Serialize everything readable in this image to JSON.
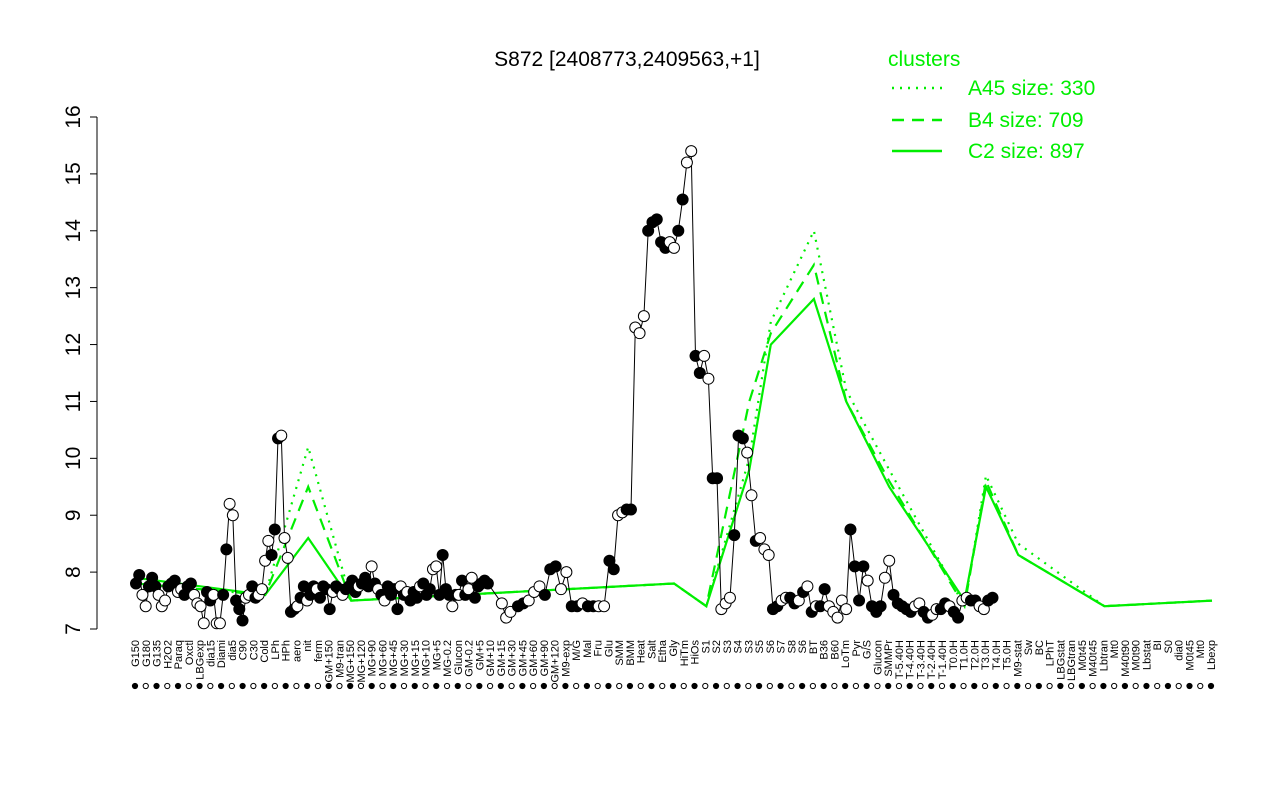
{
  "chart_data": {
    "type": "line",
    "title": "S872 [2408773,2409563,+1]",
    "ylim": [
      7,
      16
    ],
    "yticks": [
      7,
      8,
      9,
      10,
      11,
      12,
      13,
      14,
      15,
      16
    ],
    "x_tick_labels": [
      "G150",
      "G180",
      "G135",
      "H2O2",
      "Paraq",
      "Oxctl",
      "LBGexp",
      "dia15",
      "Diami",
      "dia5",
      "C90",
      "C30",
      "Cold",
      "LPh",
      "HPh",
      "aero",
      "nit",
      "ferm",
      "GM+150",
      "M9-tran",
      "MG+150",
      "MG+120",
      "MG+90",
      "MG+60",
      "MG+45",
      "MG+30",
      "MG+15",
      "MG+10",
      "MG+5",
      "MG-0.2",
      "Glucon",
      "GM-0.2",
      "GM+5",
      "GM+10",
      "GM+15",
      "GM+30",
      "GM+45",
      "GM+60",
      "GM+90",
      "GM+120",
      "M9-exp",
      "M/G",
      "Mal",
      "Fru",
      "Glu",
      "SMM",
      "BMM",
      "Heat",
      "Salt",
      "Etha",
      "Gly",
      "HiTm",
      "HiOs",
      "S1",
      "S2",
      "S3",
      "S4",
      "S3",
      "S5",
      "S6",
      "S7",
      "S8",
      "S6",
      "BT",
      "B36",
      "B60",
      "LoTm",
      "Pyr",
      "G/S",
      "Glucon",
      "SMMPr",
      "T-5.40H",
      "T-4.40H",
      "T-3.40H",
      "T-2.40H",
      "T-1.40H",
      "T0.0H",
      "T1.0H",
      "T2.0H",
      "T3.0H",
      "T4.0H",
      "T5.0H",
      "M9-stat",
      "Sw",
      "BC",
      "LPhT",
      "LBGstat",
      "LBGtran",
      "M0t45",
      "M40t45",
      "Lbtran",
      "Mt0",
      "M40t90",
      "M0t90",
      "Lbstat",
      "BI",
      "S0",
      "dia0",
      "M0t45",
      "Mt0",
      "Lbexp"
    ],
    "legend": {
      "title": "clusters",
      "placement": "top-right",
      "entries": [
        "A45 size: 330",
        "B4 size: 709",
        "C2 size: 897"
      ]
    },
    "series": [
      {
        "name": "A45 size: 330",
        "style": "dotted",
        "color": "#00ee00",
        "keypoints": [
          [
            0,
            7.8
          ],
          [
            12,
            7.6
          ],
          [
            16,
            10.2
          ],
          [
            20,
            7.5
          ],
          [
            50,
            7.8
          ],
          [
            53,
            7.4
          ],
          [
            57,
            10.0
          ],
          [
            59,
            12.4
          ],
          [
            63,
            14.0
          ],
          [
            66,
            11.2
          ],
          [
            70,
            9.8
          ],
          [
            77,
            7.4
          ],
          [
            79,
            9.7
          ],
          [
            82,
            8.5
          ],
          [
            90,
            7.4
          ],
          [
            100,
            7.5
          ]
        ]
      },
      {
        "name": "B4 size: 709",
        "style": "dashed",
        "color": "#00ee00",
        "keypoints": [
          [
            0,
            7.8
          ],
          [
            12,
            7.6
          ],
          [
            16,
            9.5
          ],
          [
            20,
            7.5
          ],
          [
            50,
            7.8
          ],
          [
            53,
            7.4
          ],
          [
            57,
            11.0
          ],
          [
            59,
            12.2
          ],
          [
            63,
            13.4
          ],
          [
            66,
            11.0
          ],
          [
            70,
            9.6
          ],
          [
            77,
            7.4
          ],
          [
            79,
            9.6
          ],
          [
            82,
            8.3
          ],
          [
            90,
            7.4
          ],
          [
            100,
            7.5
          ]
        ]
      },
      {
        "name": "C2 size: 897",
        "style": "solid",
        "color": "#00ee00",
        "keypoints": [
          [
            0,
            7.9
          ],
          [
            12,
            7.6
          ],
          [
            16,
            8.6
          ],
          [
            20,
            7.5
          ],
          [
            50,
            7.8
          ],
          [
            53,
            7.4
          ],
          [
            57,
            9.8
          ],
          [
            59,
            12.0
          ],
          [
            63,
            12.8
          ],
          [
            66,
            11.0
          ],
          [
            70,
            9.5
          ],
          [
            77,
            7.5
          ],
          [
            79,
            9.5
          ],
          [
            82,
            8.3
          ],
          [
            90,
            7.4
          ],
          [
            100,
            7.5
          ]
        ]
      }
    ],
    "points": [
      [
        0,
        7.8,
        1
      ],
      [
        0.3,
        7.95,
        1
      ],
      [
        0.6,
        7.6,
        0
      ],
      [
        0.9,
        7.4,
        0
      ],
      [
        1.2,
        7.75,
        1
      ],
      [
        1.5,
        7.9,
        1
      ],
      [
        1.8,
        7.75,
        1
      ],
      [
        2.1,
        7.6,
        0
      ],
      [
        2.4,
        7.4,
        0
      ],
      [
        2.7,
        7.5,
        0
      ],
      [
        3.0,
        7.75,
        1
      ],
      [
        3.3,
        7.8,
        1
      ],
      [
        3.6,
        7.85,
        1
      ],
      [
        3.9,
        7.65,
        0
      ],
      [
        4.2,
        7.7,
        0
      ],
      [
        4.5,
        7.6,
        1
      ],
      [
        4.8,
        7.75,
        1
      ],
      [
        5.1,
        7.8,
        1
      ],
      [
        5.4,
        7.6,
        0
      ],
      [
        5.7,
        7.45,
        0
      ],
      [
        6.0,
        7.4,
        0
      ],
      [
        6.3,
        7.1,
        0
      ],
      [
        6.6,
        7.65,
        1
      ],
      [
        6.9,
        7.5,
        1
      ],
      [
        7.2,
        7.6,
        0
      ],
      [
        7.5,
        7.1,
        0
      ],
      [
        7.8,
        7.1,
        0
      ],
      [
        8.1,
        7.6,
        1
      ],
      [
        8.4,
        8.4,
        1
      ],
      [
        8.7,
        9.2,
        0
      ],
      [
        9.0,
        9.0,
        0
      ],
      [
        9.3,
        7.5,
        1
      ],
      [
        9.6,
        7.35,
        1
      ],
      [
        9.9,
        7.15,
        1
      ],
      [
        10.2,
        7.55,
        0
      ],
      [
        10.5,
        7.6,
        0
      ],
      [
        10.8,
        7.75,
        1
      ],
      [
        11.1,
        7.55,
        1
      ],
      [
        11.4,
        7.6,
        0
      ],
      [
        11.7,
        7.7,
        0
      ],
      [
        12.0,
        8.2,
        0
      ],
      [
        12.3,
        8.55,
        0
      ],
      [
        12.6,
        8.3,
        1
      ],
      [
        12.9,
        8.75,
        1
      ],
      [
        13.2,
        10.35,
        1
      ],
      [
        13.5,
        10.4,
        0
      ],
      [
        13.8,
        8.6,
        0
      ],
      [
        14.1,
        8.25,
        0
      ],
      [
        14.4,
        7.3,
        1
      ],
      [
        14.7,
        7.35,
        1
      ],
      [
        15.0,
        7.4,
        0
      ],
      [
        15.3,
        7.55,
        1
      ],
      [
        15.6,
        7.75,
        1
      ],
      [
        15.9,
        7.5,
        0
      ],
      [
        16.2,
        7.6,
        1
      ],
      [
        16.5,
        7.75,
        1
      ],
      [
        16.8,
        7.7,
        0
      ],
      [
        17.1,
        7.55,
        1
      ],
      [
        17.4,
        7.75,
        1
      ],
      [
        17.7,
        7.7,
        1
      ],
      [
        18.0,
        7.35,
        1
      ],
      [
        18.3,
        7.65,
        0
      ],
      [
        18.6,
        7.75,
        1
      ],
      [
        18.9,
        7.7,
        1
      ],
      [
        19.2,
        7.6,
        0
      ],
      [
        19.5,
        7.7,
        1
      ],
      [
        19.8,
        7.75,
        1
      ],
      [
        20.1,
        7.85,
        1
      ],
      [
        20.4,
        7.65,
        1
      ],
      [
        20.7,
        7.75,
        0
      ],
      [
        21.0,
        7.8,
        1
      ],
      [
        21.3,
        7.9,
        1
      ],
      [
        21.6,
        7.75,
        1
      ],
      [
        21.9,
        8.1,
        0
      ],
      [
        22.2,
        7.8,
        1
      ],
      [
        22.5,
        7.7,
        0
      ],
      [
        22.8,
        7.6,
        1
      ],
      [
        23.1,
        7.5,
        0
      ],
      [
        23.4,
        7.75,
        1
      ],
      [
        23.7,
        7.6,
        1
      ],
      [
        24.0,
        7.7,
        1
      ],
      [
        24.3,
        7.35,
        1
      ],
      [
        24.6,
        7.75,
        0
      ],
      [
        24.9,
        7.6,
        1
      ],
      [
        25.2,
        7.65,
        0
      ],
      [
        25.5,
        7.5,
        1
      ],
      [
        25.8,
        7.65,
        1
      ],
      [
        26.1,
        7.55,
        1
      ],
      [
        26.4,
        7.75,
        0
      ],
      [
        26.7,
        7.8,
        1
      ],
      [
        27.0,
        7.6,
        1
      ],
      [
        27.3,
        7.7,
        1
      ],
      [
        27.6,
        8.05,
        0
      ],
      [
        27.9,
        8.1,
        0
      ],
      [
        28.2,
        7.6,
        1
      ],
      [
        28.5,
        8.3,
        1
      ],
      [
        28.8,
        7.7,
        1
      ],
      [
        29.1,
        7.6,
        1
      ],
      [
        29.4,
        7.4,
        0
      ],
      [
        29.7,
        7.6,
        1
      ],
      [
        30.0,
        7.6,
        0
      ],
      [
        30.3,
        7.85,
        1
      ],
      [
        30.6,
        7.6,
        1
      ],
      [
        30.9,
        7.7,
        0
      ],
      [
        31.2,
        7.9,
        0
      ],
      [
        31.5,
        7.55,
        1
      ],
      [
        31.8,
        7.75,
        1
      ],
      [
        32.1,
        7.8,
        1
      ],
      [
        32.4,
        7.85,
        1
      ],
      [
        32.7,
        7.8,
        1
      ],
      [
        34.0,
        7.45,
        0
      ],
      [
        34.4,
        7.2,
        0
      ],
      [
        34.8,
        7.3,
        0
      ],
      [
        35.5,
        7.4,
        1
      ],
      [
        36.0,
        7.45,
        1
      ],
      [
        36.5,
        7.5,
        0
      ],
      [
        37.0,
        7.65,
        0
      ],
      [
        37.5,
        7.75,
        0
      ],
      [
        38.0,
        7.6,
        1
      ],
      [
        38.5,
        8.05,
        1
      ],
      [
        39.0,
        8.1,
        1
      ],
      [
        39.5,
        7.7,
        0
      ],
      [
        40.0,
        8.0,
        0
      ],
      [
        40.5,
        7.4,
        1
      ],
      [
        41.0,
        7.4,
        1
      ],
      [
        41.5,
        7.45,
        0
      ],
      [
        42.0,
        7.4,
        1
      ],
      [
        42.5,
        7.4,
        1
      ],
      [
        43.0,
        7.4,
        0
      ],
      [
        43.5,
        7.4,
        0
      ],
      [
        44.0,
        8.2,
        1
      ],
      [
        44.4,
        8.05,
        1
      ],
      [
        44.8,
        9.0,
        0
      ],
      [
        45.2,
        9.05,
        0
      ],
      [
        45.6,
        9.1,
        1
      ],
      [
        46.0,
        9.1,
        1
      ],
      [
        46.4,
        12.3,
        0
      ],
      [
        46.8,
        12.2,
        0
      ],
      [
        47.2,
        12.5,
        0
      ],
      [
        47.6,
        14.0,
        1
      ],
      [
        48.0,
        14.15,
        1
      ],
      [
        48.4,
        14.2,
        1
      ],
      [
        48.8,
        13.8,
        1
      ],
      [
        49.2,
        13.7,
        1
      ],
      [
        49.6,
        13.8,
        0
      ],
      [
        50.0,
        13.7,
        0
      ],
      [
        50.4,
        14.0,
        1
      ],
      [
        50.8,
        14.55,
        1
      ],
      [
        51.2,
        15.2,
        0
      ],
      [
        51.6,
        15.4,
        0
      ],
      [
        52.0,
        11.8,
        1
      ],
      [
        52.4,
        11.5,
        1
      ],
      [
        52.8,
        11.8,
        0
      ],
      [
        53.2,
        11.4,
        0
      ],
      [
        53.6,
        9.65,
        1
      ],
      [
        54.0,
        9.65,
        1
      ],
      [
        54.4,
        7.35,
        0
      ],
      [
        54.8,
        7.45,
        0
      ],
      [
        55.2,
        7.55,
        0
      ],
      [
        55.6,
        8.65,
        1
      ],
      [
        56.0,
        10.4,
        1
      ],
      [
        56.4,
        10.35,
        1
      ],
      [
        56.8,
        10.1,
        0
      ],
      [
        57.2,
        9.35,
        0
      ],
      [
        57.6,
        8.55,
        1
      ],
      [
        58.0,
        8.6,
        0
      ],
      [
        58.4,
        8.4,
        0
      ],
      [
        58.8,
        8.3,
        0
      ],
      [
        59.2,
        7.35,
        1
      ],
      [
        59.6,
        7.4,
        1
      ],
      [
        60.0,
        7.5,
        0
      ],
      [
        60.4,
        7.55,
        0
      ],
      [
        60.8,
        7.55,
        1
      ],
      [
        61.2,
        7.45,
        1
      ],
      [
        61.6,
        7.5,
        0
      ],
      [
        62.0,
        7.65,
        1
      ],
      [
        62.4,
        7.75,
        0
      ],
      [
        62.8,
        7.3,
        1
      ],
      [
        63.2,
        7.4,
        0
      ],
      [
        63.6,
        7.4,
        1
      ],
      [
        64.0,
        7.7,
        1
      ],
      [
        64.4,
        7.4,
        0
      ],
      [
        64.8,
        7.3,
        0
      ],
      [
        65.2,
        7.2,
        0
      ],
      [
        65.6,
        7.5,
        0
      ],
      [
        66.0,
        7.35,
        0
      ],
      [
        66.4,
        8.75,
        1
      ],
      [
        66.8,
        8.1,
        1
      ],
      [
        67.2,
        7.5,
        1
      ],
      [
        67.6,
        8.1,
        1
      ],
      [
        68.0,
        7.85,
        0
      ],
      [
        68.4,
        7.4,
        1
      ],
      [
        68.8,
        7.3,
        1
      ],
      [
        69.2,
        7.4,
        1
      ],
      [
        69.6,
        7.9,
        0
      ],
      [
        70.0,
        8.2,
        0
      ],
      [
        70.4,
        7.6,
        1
      ],
      [
        70.8,
        7.45,
        1
      ],
      [
        71.2,
        7.4,
        1
      ],
      [
        71.6,
        7.35,
        1
      ],
      [
        72.0,
        7.3,
        1
      ],
      [
        72.4,
        7.4,
        0
      ],
      [
        72.8,
        7.45,
        0
      ],
      [
        73.2,
        7.3,
        1
      ],
      [
        73.6,
        7.2,
        1
      ],
      [
        74.0,
        7.25,
        0
      ],
      [
        74.4,
        7.35,
        0
      ],
      [
        74.8,
        7.35,
        1
      ],
      [
        75.2,
        7.45,
        1
      ],
      [
        75.6,
        7.4,
        0
      ],
      [
        76.0,
        7.3,
        1
      ],
      [
        76.4,
        7.2,
        1
      ],
      [
        76.8,
        7.5,
        0
      ],
      [
        77.2,
        7.55,
        0
      ],
      [
        77.6,
        7.5,
        1
      ],
      [
        78.0,
        7.5,
        1
      ],
      [
        78.4,
        7.4,
        0
      ],
      [
        78.8,
        7.35,
        0
      ],
      [
        79.2,
        7.5,
        1
      ],
      [
        79.6,
        7.55,
        1
      ]
    ]
  }
}
